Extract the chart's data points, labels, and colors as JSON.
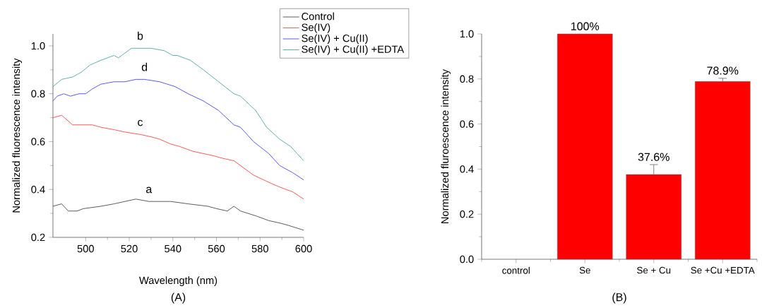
{
  "chart_data": [
    {
      "type": "line",
      "xlabel": "Wavelength (nm)",
      "ylabel": "Normalized fluorescence intensity",
      "xlim": [
        485,
        600
      ],
      "xticks": [
        500,
        520,
        540,
        560,
        580,
        600
      ],
      "ylim": [
        0.2,
        1.05
      ],
      "yticks": [
        {
          "value": 0.2,
          "label": "0.2"
        },
        {
          "value": 0.4,
          "label": "0.4"
        },
        {
          "value": 0.6,
          "label": "0.6"
        },
        {
          "value": 0.8,
          "label": "0.8"
        },
        {
          "value": 1.0,
          "label": "1.0"
        }
      ],
      "legend": "top right",
      "series": [
        {
          "name": "Control",
          "color": "#333333",
          "x": [
            485,
            489,
            492,
            496,
            499,
            507,
            513,
            518,
            523,
            529,
            539,
            547,
            556,
            560,
            565,
            568,
            571,
            578,
            584,
            589,
            593,
            600
          ],
          "values": [
            0.33,
            0.34,
            0.31,
            0.31,
            0.32,
            0.33,
            0.34,
            0.35,
            0.36,
            0.35,
            0.35,
            0.34,
            0.33,
            0.32,
            0.31,
            0.33,
            0.31,
            0.29,
            0.27,
            0.26,
            0.25,
            0.23
          ]
        },
        {
          "name": "Se(IV)",
          "color": "#ff3030",
          "x": [
            485,
            489,
            494,
            498,
            503,
            507,
            513,
            518,
            525,
            530,
            534,
            539,
            543,
            549,
            554,
            559,
            563,
            568,
            571,
            577,
            584,
            589,
            595,
            600
          ],
          "values": [
            0.7,
            0.71,
            0.67,
            0.67,
            0.67,
            0.66,
            0.65,
            0.64,
            0.63,
            0.62,
            0.61,
            0.59,
            0.58,
            0.56,
            0.55,
            0.54,
            0.53,
            0.52,
            0.5,
            0.46,
            0.43,
            0.41,
            0.39,
            0.36
          ]
        },
        {
          "name": "Se(IV) + Cu(II)",
          "color": "#3030ff",
          "x": [
            485,
            487,
            490,
            493,
            497,
            500,
            503,
            507,
            513,
            518,
            523,
            527,
            534,
            541,
            547,
            554,
            561,
            568,
            571,
            577,
            584,
            589,
            595,
            600
          ],
          "values": [
            0.77,
            0.79,
            0.8,
            0.79,
            0.8,
            0.8,
            0.82,
            0.84,
            0.85,
            0.85,
            0.86,
            0.86,
            0.85,
            0.83,
            0.8,
            0.77,
            0.73,
            0.67,
            0.66,
            0.6,
            0.55,
            0.5,
            0.47,
            0.44
          ]
        },
        {
          "name": "Se(IV) + Cu(II) +EDTA",
          "color": "#3a9a9a",
          "x": [
            485,
            489,
            494,
            498,
            502,
            507,
            513,
            515,
            521,
            525,
            530,
            536,
            540,
            542,
            548,
            554,
            561,
            568,
            571,
            578,
            583,
            589,
            594,
            597,
            600
          ],
          "values": [
            0.83,
            0.86,
            0.87,
            0.89,
            0.92,
            0.94,
            0.96,
            0.95,
            0.99,
            0.99,
            0.99,
            0.98,
            0.96,
            0.96,
            0.94,
            0.9,
            0.85,
            0.8,
            0.79,
            0.73,
            0.66,
            0.61,
            0.58,
            0.55,
            0.52
          ]
        }
      ],
      "annotations": [
        {
          "text": "b",
          "x": 525,
          "y": 0.99
        },
        {
          "text": "d",
          "x": 527,
          "y": 0.86
        },
        {
          "text": "c",
          "x": 525,
          "y": 0.63
        },
        {
          "text": "a",
          "x": 529,
          "y": 0.35
        },
        "(A)"
      ]
    },
    {
      "type": "bar",
      "ylabel": "Normalized fluroescence intensity",
      "categories": [
        "control",
        "Se",
        "Se + Cu",
        "Se +Cu +EDTA"
      ],
      "values": [
        null,
        1.0,
        0.376,
        0.789
      ],
      "color": "#ff0000",
      "errors": [
        null,
        null,
        0.044,
        0.014
      ],
      "value_labels": [
        null,
        "100%",
        "37.6%",
        "78.9%"
      ],
      "ylim": [
        0,
        1.0
      ],
      "yticks": [
        {
          "value": 0,
          "label": "0.0"
        },
        {
          "value": 0.2,
          "label": "0.2"
        },
        {
          "value": 0.4,
          "label": "0.4"
        },
        {
          "value": 0.6,
          "label": "0.6"
        },
        {
          "value": 0.8,
          "label": "0.8"
        },
        {
          "value": 1.0,
          "label": "1.0"
        }
      ],
      "annotations": [
        "(B)"
      ]
    }
  ]
}
